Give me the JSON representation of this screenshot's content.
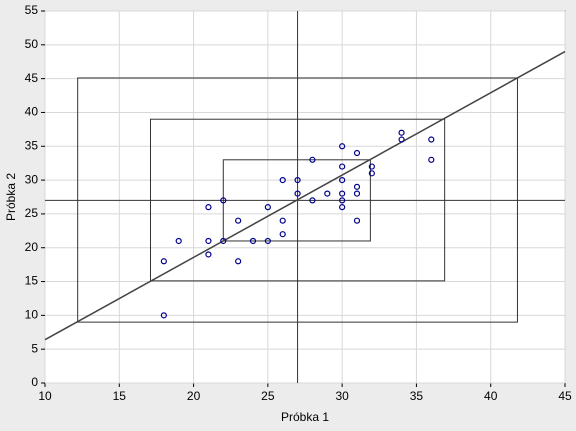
{
  "chart_data": {
    "type": "scatter",
    "xlabel": "Próbka 1",
    "ylabel": "Próbka 2",
    "x": [
      18,
      18,
      19,
      21,
      21,
      21,
      22,
      22,
      23,
      23,
      24,
      25,
      25,
      26,
      26,
      26,
      27,
      27,
      28,
      28,
      29,
      30,
      30,
      30,
      30,
      30,
      30,
      31,
      31,
      31,
      31,
      32,
      32,
      34,
      34,
      36,
      36
    ],
    "values": [
      10,
      18,
      21,
      26,
      21,
      19,
      27,
      21,
      24,
      18,
      21,
      26,
      21,
      30,
      24,
      22,
      30,
      28,
      33,
      27,
      28,
      35,
      32,
      30,
      28,
      27,
      26,
      34,
      29,
      28,
      24,
      32,
      31,
      37,
      36,
      36,
      33
    ],
    "color": "#00008b",
    "fit_line": {
      "x": [
        10,
        45
      ],
      "y": [
        6.4,
        49
      ]
    },
    "mean_x": 27,
    "mean_y": 27,
    "rectangles": [
      {
        "x0": 12.2,
        "x1": 41.8,
        "y0": 9,
        "y1": 45.1
      },
      {
        "x0": 17.1,
        "x1": 36.9,
        "y0": 15.1,
        "y1": 39
      },
      {
        "x0": 22,
        "x1": 31.9,
        "y0": 21,
        "y1": 33
      }
    ],
    "xlim": [
      10,
      45
    ],
    "ylim": [
      0,
      55
    ],
    "xticks": [
      10,
      15,
      20,
      25,
      30,
      35,
      40,
      45
    ],
    "yticks": [
      0,
      5,
      10,
      15,
      20,
      25,
      30,
      35,
      40,
      45,
      50,
      55
    ],
    "grid": true
  }
}
